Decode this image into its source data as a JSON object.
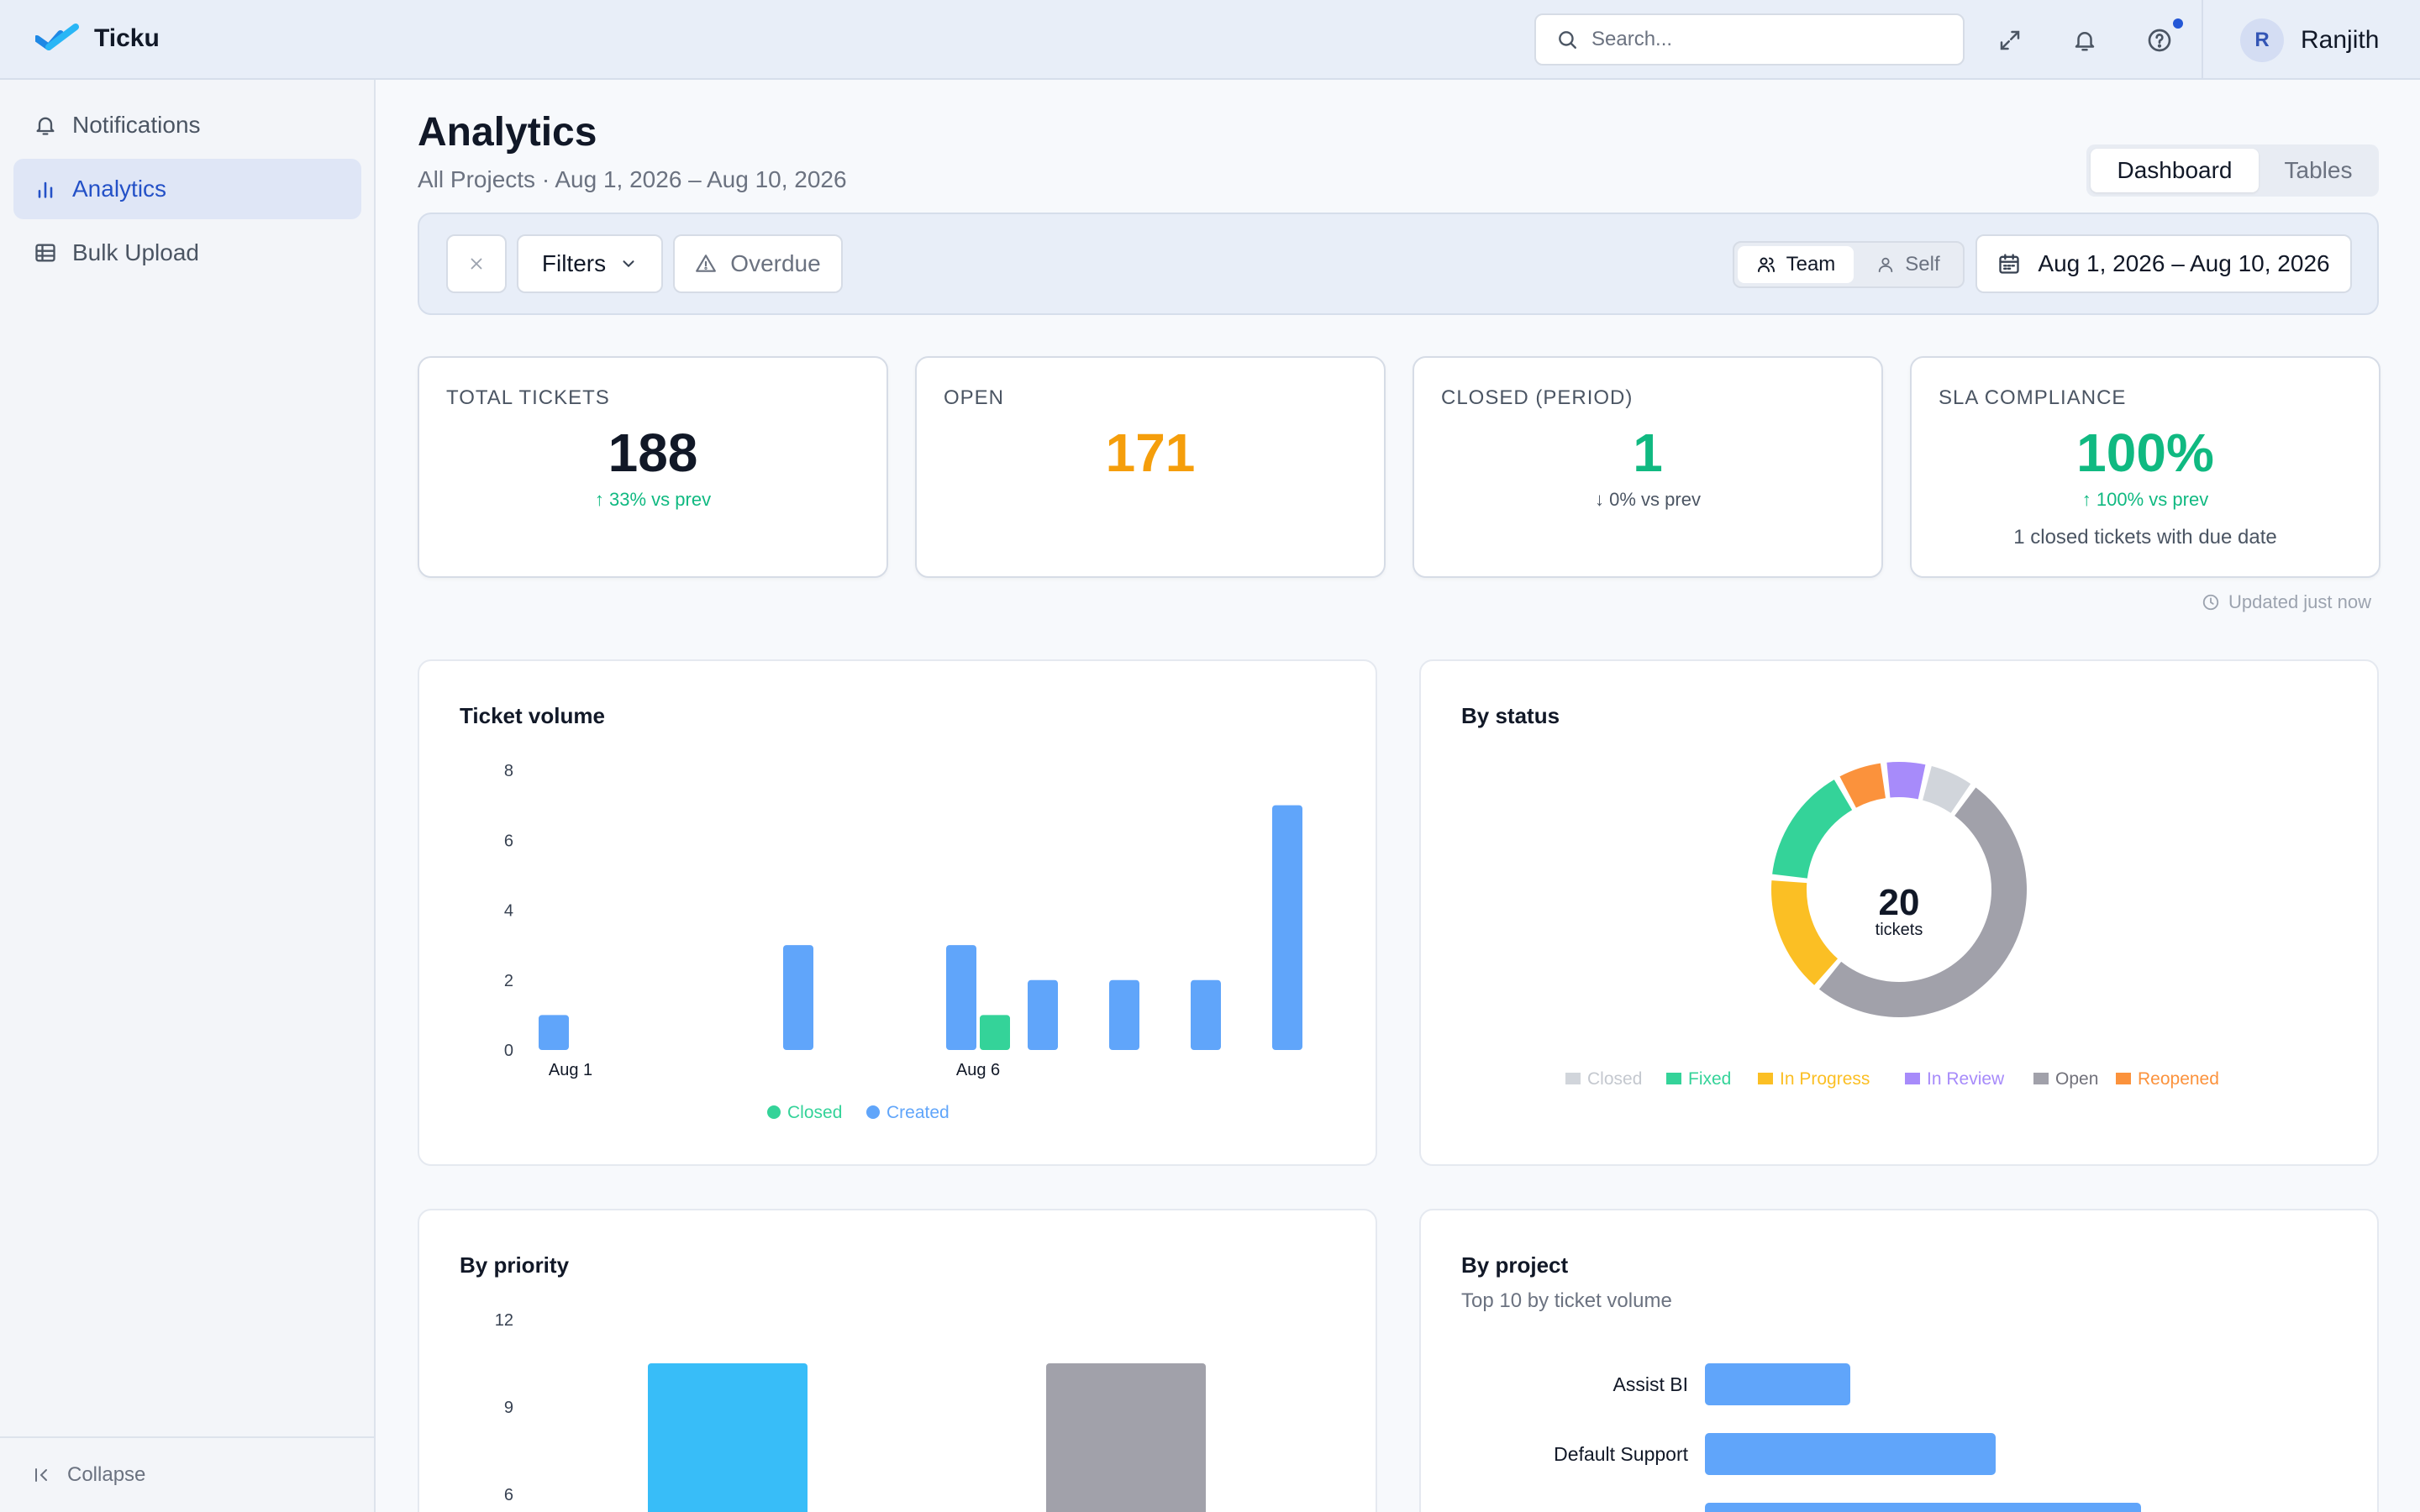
{
  "app": {
    "name": "Ticku"
  },
  "header": {
    "search_placeholder": "Search...",
    "user_initial": "R",
    "user_name": "Ranjith"
  },
  "sidebar": {
    "items": [
      {
        "label": "Notifications",
        "icon": "bell-icon",
        "active": false
      },
      {
        "label": "Analytics",
        "icon": "bar-chart-icon",
        "active": true
      },
      {
        "label": "Bulk Upload",
        "icon": "table-icon",
        "active": false
      }
    ],
    "collapse_label": "Collapse"
  },
  "page": {
    "title": "Analytics",
    "subtitle": "All Projects · Aug 1, 2026 – Aug 10, 2026",
    "views": [
      "Dashboard",
      "Tables"
    ],
    "active_view": "Dashboard"
  },
  "filters": {
    "filters_label": "Filters",
    "overdue_label": "Overdue",
    "scope_options": [
      "Team",
      "Self"
    ],
    "active_scope": "Team",
    "date_range": "Aug 1, 2026 – Aug 10, 2026"
  },
  "kpis": [
    {
      "label": "TOTAL TICKETS",
      "value": "188",
      "delta": "↑ 33% vs prev",
      "note": "",
      "value_color": "#111827",
      "delta_color": "#10b981"
    },
    {
      "label": "OPEN",
      "value": "171",
      "delta": "",
      "note": "",
      "value_color": "#f59e0b",
      "delta_color": "#10b981"
    },
    {
      "label": "CLOSED (PERIOD)",
      "value": "1",
      "delta": "↓ 0% vs prev",
      "note": "",
      "value_color": "#10b981",
      "delta_color": "#4b5563"
    },
    {
      "label": "SLA COMPLIANCE",
      "value": "100%",
      "delta": "↑ 100% vs prev",
      "note": "1 closed tickets with due date",
      "value_color": "#10b981",
      "delta_color": "#10b981"
    }
  ],
  "updated_label": "Updated just now",
  "cards": {
    "ticket_volume": {
      "title": "Ticket volume"
    },
    "by_status": {
      "title": "By status"
    },
    "by_priority": {
      "title": "By priority"
    },
    "by_project": {
      "title": "By project",
      "subtitle": "Top 10 by ticket volume"
    }
  },
  "chart_data": [
    {
      "id": "ticket_volume",
      "type": "bar",
      "title": "Ticket volume",
      "categories": [
        "Aug 1",
        "Aug 2",
        "Aug 3",
        "Aug 4",
        "Aug 5",
        "Aug 6",
        "Aug 7",
        "Aug 8",
        "Aug 9",
        "Aug 10"
      ],
      "tick_labels": {
        "Aug 1": "Aug 1",
        "Aug 6": "Aug 6"
      },
      "series": [
        {
          "name": "Created",
          "color": "#60a5fa",
          "values": [
            1,
            0,
            0,
            3,
            0,
            3,
            2,
            2,
            2,
            7
          ]
        },
        {
          "name": "Closed",
          "color": "#34d399",
          "values": [
            0,
            0,
            0,
            0,
            0,
            1,
            0,
            0,
            0,
            0
          ]
        }
      ],
      "legend_order": [
        "Closed",
        "Created"
      ],
      "yticks": [
        0,
        2,
        4,
        6,
        8
      ],
      "ylim": [
        0,
        8
      ]
    },
    {
      "id": "by_status",
      "type": "pie",
      "title": "By status",
      "center_value": "20",
      "center_label": "tickets",
      "slices": [
        {
          "label": "Open",
          "value": 10,
          "color": "#a1a1aa"
        },
        {
          "label": "In Progress",
          "value": 3,
          "color": "#fbbf24"
        },
        {
          "label": "Fixed",
          "value": 3,
          "color": "#34d399"
        },
        {
          "label": "Reopened",
          "value": 1.2,
          "color": "#fb923c"
        },
        {
          "label": "In Review",
          "value": 1.1,
          "color": "#a78bfa"
        },
        {
          "label": "Closed",
          "value": 1.2,
          "color": "#d1d5db"
        }
      ],
      "legend": [
        {
          "label": "Closed",
          "color": "#d1d5db"
        },
        {
          "label": "Fixed",
          "color": "#34d399"
        },
        {
          "label": "In Progress",
          "color": "#fbbf24"
        },
        {
          "label": "In Review",
          "color": "#a78bfa"
        },
        {
          "label": "Open",
          "color": "#a1a1aa"
        },
        {
          "label": "Reopened",
          "color": "#fb923c"
        }
      ]
    },
    {
      "id": "by_priority",
      "type": "bar",
      "title": "By priority",
      "categories": [
        "",
        ""
      ],
      "values": [
        10.5,
        10.5
      ],
      "colors": [
        "#38bdf8",
        "#a1a1aa"
      ],
      "yticks": [
        6,
        9,
        12
      ],
      "ylim": [
        0,
        12
      ]
    },
    {
      "id": "by_project",
      "type": "bar",
      "orientation": "horizontal",
      "title": "By project",
      "categories": [
        "Assist BI",
        "Default Support",
        ""
      ],
      "values": [
        2,
        4,
        6
      ],
      "color": "#60a5fa"
    }
  ]
}
